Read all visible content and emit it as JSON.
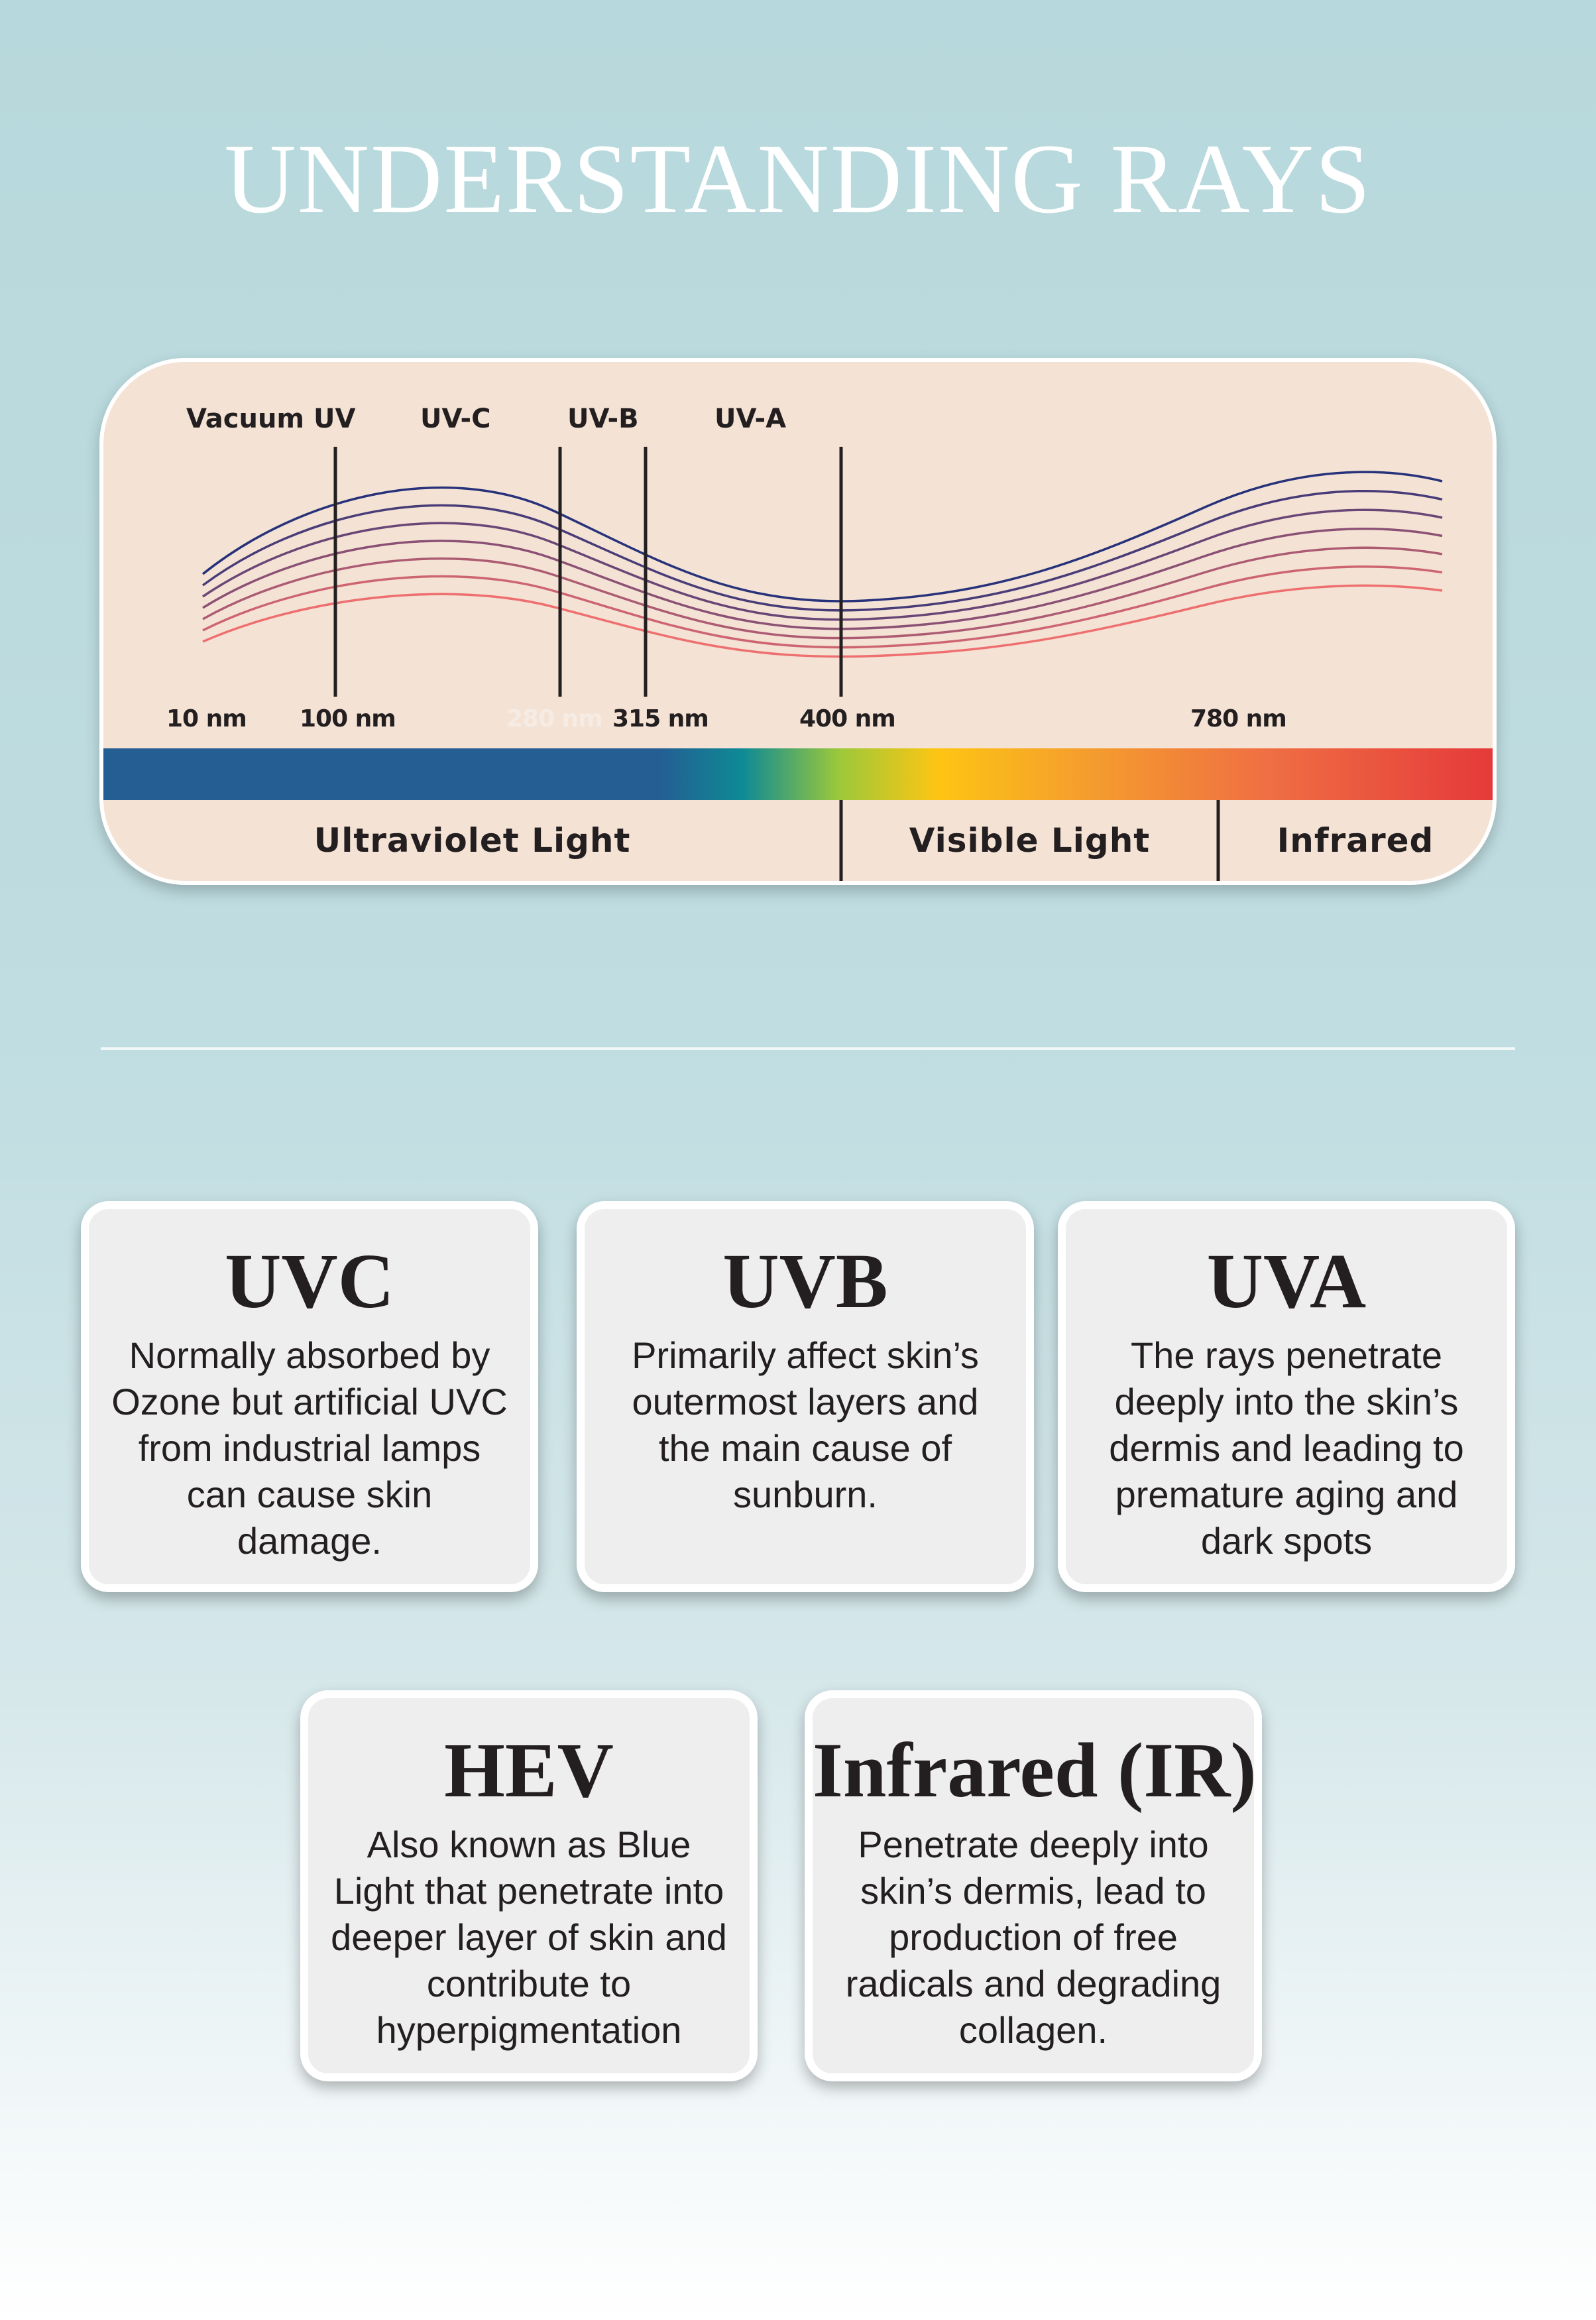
{
  "title": "UNDERSTANDING RAYS",
  "spectrum": {
    "top_labels": [
      "Vacuum UV",
      "UV-C",
      "UV-B",
      "UV-A"
    ],
    "nm_labels": [
      "10 nm",
      "100 nm",
      "280 nm",
      "315 nm",
      "400 nm",
      "780 nm"
    ],
    "bands": [
      "Ultraviolet Light",
      "Visible Light",
      "Infrared"
    ],
    "colors": {
      "panel": "#f4e2d4",
      "wave_top": "#27327a",
      "wave_bottom": "#ee6f6f",
      "bar_stops": [
        "#245e93",
        "#245e93",
        "#0e8a95",
        "#9cc93a",
        "#fdc513",
        "#f5a02c",
        "#ef6e43",
        "#e53a3a"
      ]
    }
  },
  "cards": [
    {
      "title": "UVC",
      "text": "Normally absorbed by Ozone but artificial UVC from industrial lamps can cause skin damage."
    },
    {
      "title": "UVB",
      "text": "Primarily affect skin’s outermost layers and the main cause of sunburn."
    },
    {
      "title": "UVA",
      "text": "The rays penetrate deeply into the skin’s dermis and leading to premature aging and dark spots"
    },
    {
      "title": "HEV",
      "text": "Also known as Blue Light that penetrate into deeper layer of skin and contribute to hyperpigmentation"
    },
    {
      "title": "Infrared (IR)",
      "text": "Penetrate deeply into skin’s dermis, lead to production of free radicals and degrading collagen."
    }
  ]
}
